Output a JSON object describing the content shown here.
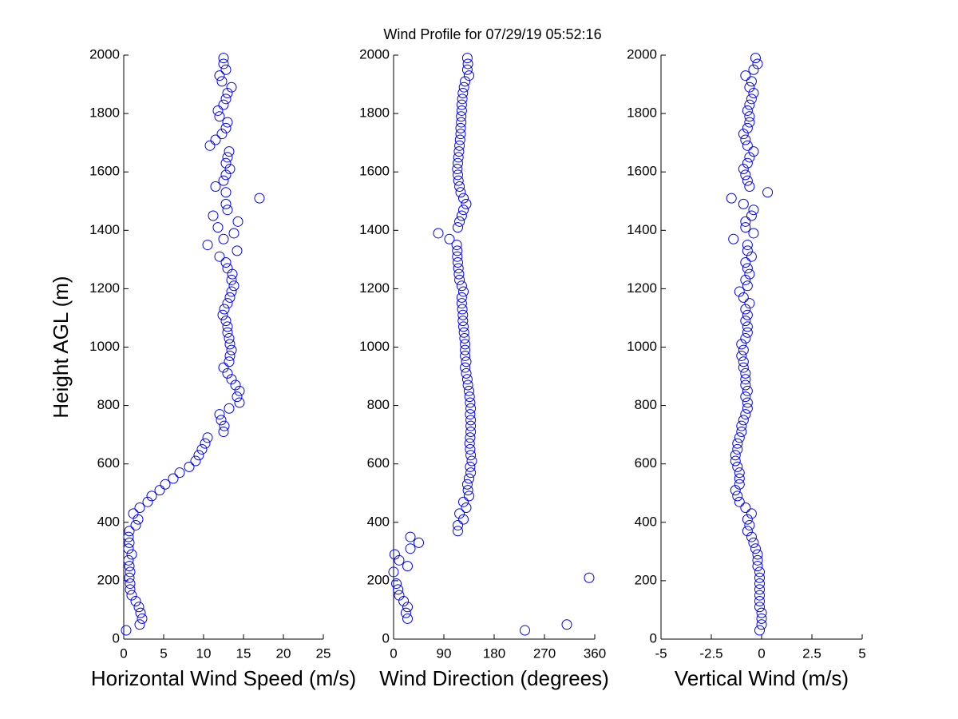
{
  "chart_data": [
    {
      "type": "scatter",
      "title": "Wind Profile for  07/29/19 05:52:16",
      "xlabel": "Horizontal Wind Speed (m/s)",
      "ylabel": "Height AGL (m)",
      "color": "#0000ff",
      "xlim": [
        0,
        25
      ],
      "xticks": [
        0,
        5,
        10,
        15,
        20,
        25
      ],
      "ylim": [
        0,
        2000
      ],
      "yticks": [
        0,
        200,
        400,
        600,
        800,
        1000,
        1200,
        1400,
        1600,
        1800,
        2000
      ],
      "x": [
        0.3,
        2.0,
        2.3,
        2.1,
        1.9,
        1.5,
        1.0,
        0.8,
        0.8,
        0.7,
        0.8,
        0.7,
        0.6,
        1.0,
        0.6,
        0.7,
        0.6,
        0.7,
        1.5,
        1.8,
        1.2,
        2.0,
        3.0,
        3.5,
        4.5,
        5.2,
        6.2,
        7.0,
        8.2,
        9.0,
        9.4,
        9.8,
        10.2,
        10.5,
        12.5,
        12.6,
        12.2,
        12.0,
        13.2,
        14.5,
        14.2,
        14.5,
        14.0,
        13.5,
        13.0,
        12.5,
        13.2,
        13.3,
        13.5,
        13.3,
        13.2,
        13.0,
        13.0,
        12.8,
        12.4,
        12.6,
        13.0,
        13.3,
        13.5,
        13.8,
        13.5,
        13.6,
        13.0,
        12.8,
        12.0,
        14.2,
        10.5,
        12.5,
        13.8,
        11.8,
        14.3,
        11.2,
        13.0,
        12.8,
        17.0,
        12.8,
        11.5,
        12.5,
        12.8,
        13.3,
        12.8,
        13.0,
        13.2,
        10.8,
        11.5,
        12.3,
        12.8,
        13.0,
        12.0,
        11.8,
        12.5,
        12.8,
        13.0,
        13.5,
        12.3,
        12.0,
        12.8,
        12.5,
        12.5
      ],
      "y": [
        30,
        50,
        70,
        90,
        110,
        130,
        150,
        170,
        190,
        210,
        230,
        250,
        270,
        290,
        310,
        330,
        350,
        370,
        390,
        410,
        430,
        450,
        470,
        490,
        510,
        530,
        550,
        570,
        590,
        610,
        630,
        650,
        670,
        690,
        710,
        730,
        750,
        770,
        790,
        810,
        830,
        850,
        870,
        890,
        910,
        930,
        950,
        970,
        990,
        1010,
        1030,
        1050,
        1070,
        1090,
        1110,
        1130,
        1150,
        1170,
        1190,
        1210,
        1230,
        1250,
        1270,
        1290,
        1310,
        1330,
        1350,
        1370,
        1390,
        1410,
        1430,
        1450,
        1470,
        1490,
        1510,
        1530,
        1550,
        1570,
        1590,
        1610,
        1630,
        1650,
        1670,
        1690,
        1710,
        1730,
        1750,
        1770,
        1790,
        1810,
        1830,
        1850,
        1870,
        1890,
        1910,
        1930,
        1950,
        1970,
        1990
      ]
    },
    {
      "type": "scatter",
      "xlabel": "Wind Direction (degrees)",
      "color": "#0000ff",
      "xlim": [
        0,
        360
      ],
      "xticks": [
        0,
        90,
        180,
        270,
        360
      ],
      "ylim": [
        0,
        2000
      ],
      "yticks": [
        0,
        200,
        400,
        600,
        800,
        1000,
        1200,
        1400,
        1600,
        1800,
        2000
      ],
      "x": [
        235,
        310,
        25,
        22,
        25,
        18,
        10,
        8,
        5,
        350,
        0,
        25,
        10,
        2,
        30,
        45,
        30,
        115,
        115,
        125,
        118,
        130,
        125,
        135,
        133,
        132,
        135,
        138,
        137,
        140,
        138,
        137,
        136,
        137,
        138,
        138,
        138,
        137,
        138,
        137,
        136,
        135,
        133,
        132,
        130,
        128,
        130,
        128,
        128,
        128,
        127,
        126,
        125,
        124,
        124,
        123,
        122,
        122,
        125,
        122,
        118,
        117,
        116,
        115,
        114,
        114,
        113,
        100,
        80,
        115,
        118,
        122,
        125,
        130,
        125,
        120,
        118,
        116,
        115,
        114,
        115,
        116,
        117,
        118,
        119,
        120,
        120,
        121,
        121,
        122,
        122,
        123,
        124,
        126,
        128,
        135,
        132,
        133,
        132
      ],
      "y": [
        30,
        50,
        70,
        90,
        110,
        130,
        150,
        170,
        190,
        210,
        230,
        250,
        270,
        290,
        310,
        330,
        350,
        370,
        390,
        410,
        430,
        450,
        470,
        490,
        510,
        530,
        550,
        570,
        590,
        610,
        630,
        650,
        670,
        690,
        710,
        730,
        750,
        770,
        790,
        810,
        830,
        850,
        870,
        890,
        910,
        930,
        950,
        970,
        990,
        1010,
        1030,
        1050,
        1070,
        1090,
        1110,
        1130,
        1150,
        1170,
        1190,
        1210,
        1230,
        1250,
        1270,
        1290,
        1310,
        1330,
        1350,
        1370,
        1390,
        1410,
        1430,
        1450,
        1470,
        1490,
        1510,
        1530,
        1550,
        1570,
        1590,
        1610,
        1630,
        1650,
        1670,
        1690,
        1710,
        1730,
        1750,
        1770,
        1790,
        1810,
        1830,
        1850,
        1870,
        1890,
        1910,
        1930,
        1950,
        1970,
        1990
      ]
    },
    {
      "type": "scatter",
      "xlabel": "Vertical Wind (m/s)",
      "color": "#0000ff",
      "xlim": [
        -5,
        5
      ],
      "xticks": [
        -5,
        -2.5,
        0,
        2.5,
        5
      ],
      "ylim": [
        0,
        2000
      ],
      "yticks": [
        0,
        200,
        400,
        600,
        800,
        1000,
        1200,
        1400,
        1600,
        1800,
        2000
      ],
      "x": [
        -0.1,
        0,
        0,
        0,
        -0.1,
        -0.1,
        -0.1,
        -0.1,
        -0.1,
        -0.1,
        -0.1,
        -0.2,
        -0.2,
        -0.2,
        -0.3,
        -0.4,
        -0.5,
        -0.7,
        -0.6,
        -0.7,
        -0.5,
        -0.8,
        -1.1,
        -1.2,
        -1.3,
        -1.1,
        -1.1,
        -1.1,
        -1.2,
        -1.3,
        -1.3,
        -1.2,
        -1.2,
        -1.1,
        -1.0,
        -1.0,
        -0.9,
        -0.8,
        -0.7,
        -0.7,
        -0.8,
        -0.7,
        -0.8,
        -0.8,
        -0.8,
        -0.9,
        -0.9,
        -1.0,
        -0.9,
        -1.0,
        -0.8,
        -0.7,
        -0.7,
        -0.8,
        -0.7,
        -0.8,
        -0.6,
        -0.9,
        -1.1,
        -0.7,
        -0.8,
        -0.6,
        -0.7,
        -0.8,
        -0.5,
        -0.7,
        -0.7,
        -1.4,
        -0.4,
        -0.8,
        -0.8,
        -0.5,
        -0.4,
        -0.9,
        -1.5,
        0.3,
        -0.6,
        -0.7,
        -0.8,
        -0.9,
        -0.7,
        -0.6,
        -0.4,
        -0.7,
        -0.8,
        -0.9,
        -0.7,
        -0.6,
        -0.6,
        -0.7,
        -0.6,
        -0.5,
        -0.4,
        -0.6,
        -0.5,
        -0.8,
        -0.4,
        -0.2,
        -0.3
      ],
      "y": [
        30,
        50,
        70,
        90,
        110,
        130,
        150,
        170,
        190,
        210,
        230,
        250,
        270,
        290,
        310,
        330,
        350,
        370,
        390,
        410,
        430,
        450,
        470,
        490,
        510,
        530,
        550,
        570,
        590,
        610,
        630,
        650,
        670,
        690,
        710,
        730,
        750,
        770,
        790,
        810,
        830,
        850,
        870,
        890,
        910,
        930,
        950,
        970,
        990,
        1010,
        1030,
        1050,
        1070,
        1090,
        1110,
        1130,
        1150,
        1170,
        1190,
        1210,
        1230,
        1250,
        1270,
        1290,
        1310,
        1330,
        1350,
        1370,
        1390,
        1410,
        1430,
        1450,
        1470,
        1490,
        1510,
        1530,
        1550,
        1570,
        1590,
        1610,
        1630,
        1650,
        1670,
        1690,
        1710,
        1730,
        1750,
        1770,
        1790,
        1810,
        1830,
        1850,
        1870,
        1890,
        1910,
        1930,
        1950,
        1970,
        1990
      ]
    }
  ]
}
